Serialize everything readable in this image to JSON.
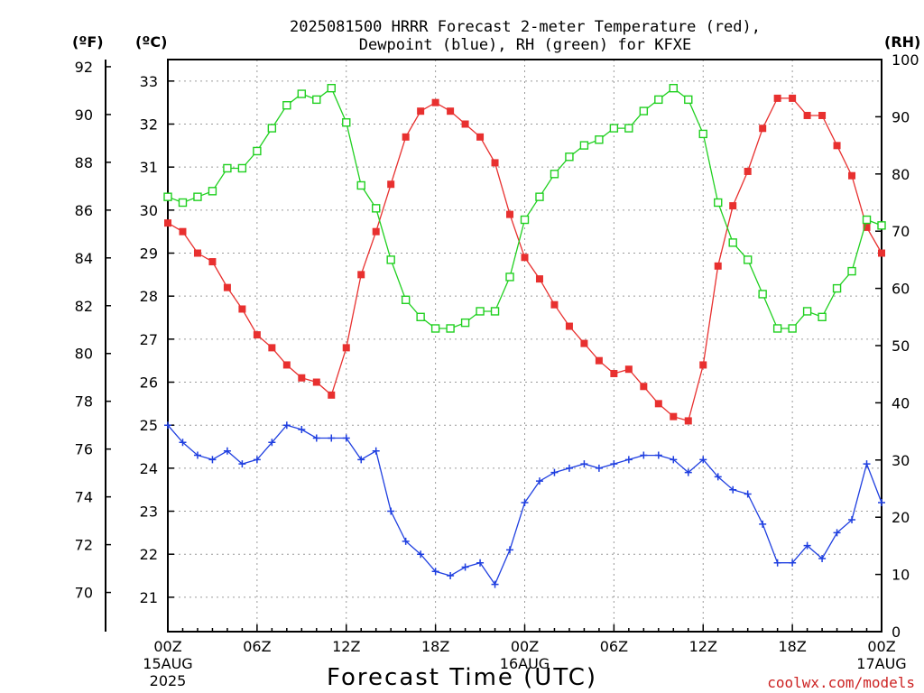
{
  "chart_data": {
    "type": "line",
    "title_line1": "2025081500 HRRR Forecast 2-meter Temperature (red),",
    "title_line2": "Dewpoint (blue), RH (green) for KFXE",
    "xlabel": "Forecast Time (UTC)",
    "credit": "coolwx.com/models",
    "units": {
      "f": "(ºF)",
      "c": "(ºC)",
      "rh": "(RH)"
    },
    "x_hours": [
      0,
      1,
      2,
      3,
      4,
      5,
      6,
      7,
      8,
      9,
      10,
      11,
      12,
      13,
      14,
      15,
      16,
      17,
      18,
      19,
      20,
      21,
      22,
      23,
      24,
      25,
      26,
      27,
      28,
      29,
      30,
      31,
      32,
      33,
      34,
      35,
      36,
      37,
      38,
      39,
      40,
      41,
      42,
      43,
      44,
      45,
      46,
      47,
      48
    ],
    "xlim": [
      0,
      48
    ],
    "x_ticks": [
      {
        "h": 0,
        "l1": "00Z",
        "l2": "15AUG",
        "l3": "2025"
      },
      {
        "h": 6,
        "l1": "06Z",
        "l2": "",
        "l3": ""
      },
      {
        "h": 12,
        "l1": "12Z",
        "l2": "",
        "l3": ""
      },
      {
        "h": 18,
        "l1": "18Z",
        "l2": "",
        "l3": ""
      },
      {
        "h": 24,
        "l1": "00Z",
        "l2": "16AUG",
        "l3": ""
      },
      {
        "h": 30,
        "l1": "06Z",
        "l2": "",
        "l3": ""
      },
      {
        "h": 36,
        "l1": "12Z",
        "l2": "",
        "l3": ""
      },
      {
        "h": 42,
        "l1": "18Z",
        "l2": "",
        "l3": ""
      },
      {
        "h": 48,
        "l1": "00Z",
        "l2": "17AUG",
        "l3": ""
      }
    ],
    "left_axis_c": {
      "ylim": [
        20.2,
        33.5
      ],
      "ticks": [
        21,
        22,
        23,
        24,
        25,
        26,
        27,
        28,
        29,
        30,
        31,
        32,
        33
      ]
    },
    "left_axis_f": {
      "ticks": [
        70,
        72,
        74,
        76,
        78,
        80,
        82,
        84,
        86,
        88,
        90,
        92
      ]
    },
    "right_axis_rh": {
      "ylim": [
        0,
        100
      ],
      "ticks": [
        0,
        10,
        20,
        30,
        40,
        50,
        60,
        70,
        80,
        90,
        100
      ]
    },
    "series": [
      {
        "name": "Temperature",
        "axis": "c",
        "color": "#e8302f",
        "marker": "filled-square",
        "values": [
          29.7,
          29.5,
          29.0,
          28.8,
          28.2,
          27.7,
          27.1,
          26.8,
          26.4,
          26.1,
          26.0,
          25.7,
          26.8,
          28.5,
          29.5,
          30.6,
          31.7,
          32.3,
          32.5,
          32.3,
          32.0,
          31.7,
          31.1,
          29.9,
          28.9,
          28.4,
          27.8,
          27.3,
          26.9,
          26.5,
          26.2,
          26.3,
          25.9,
          25.5,
          25.2,
          25.1,
          26.4,
          28.7,
          30.1,
          30.9,
          31.9,
          32.6,
          32.6,
          32.2,
          32.2,
          31.5,
          30.8,
          29.6,
          29.0
        ]
      },
      {
        "name": "Dewpoint",
        "axis": "c",
        "color": "#1f3fe0",
        "marker": "plus",
        "values": [
          25.0,
          24.6,
          24.3,
          24.2,
          24.4,
          24.1,
          24.2,
          24.6,
          25.0,
          24.9,
          24.7,
          24.7,
          24.7,
          24.2,
          24.4,
          23.0,
          22.3,
          22.0,
          21.6,
          21.5,
          21.7,
          21.8,
          21.3,
          22.1,
          23.2,
          23.7,
          23.9,
          24.0,
          24.1,
          24.0,
          24.1,
          24.2,
          24.3,
          24.3,
          24.2,
          23.9,
          24.2,
          23.8,
          23.5,
          23.4,
          22.7,
          21.8,
          21.8,
          22.2,
          21.9,
          22.5,
          22.8,
          24.1,
          23.2
        ]
      },
      {
        "name": "RH",
        "axis": "rh",
        "color": "#20d020",
        "marker": "open-square",
        "values": [
          76,
          75,
          76,
          77,
          81,
          81,
          84,
          88,
          92,
          94,
          93,
          95,
          89,
          78,
          74,
          65,
          58,
          55,
          53,
          53,
          54,
          56,
          56,
          62,
          72,
          76,
          80,
          83,
          85,
          86,
          88,
          88,
          91,
          93,
          95,
          93,
          87,
          75,
          68,
          65,
          59,
          53,
          53,
          56,
          55,
          60,
          63,
          72,
          71
        ]
      }
    ]
  }
}
